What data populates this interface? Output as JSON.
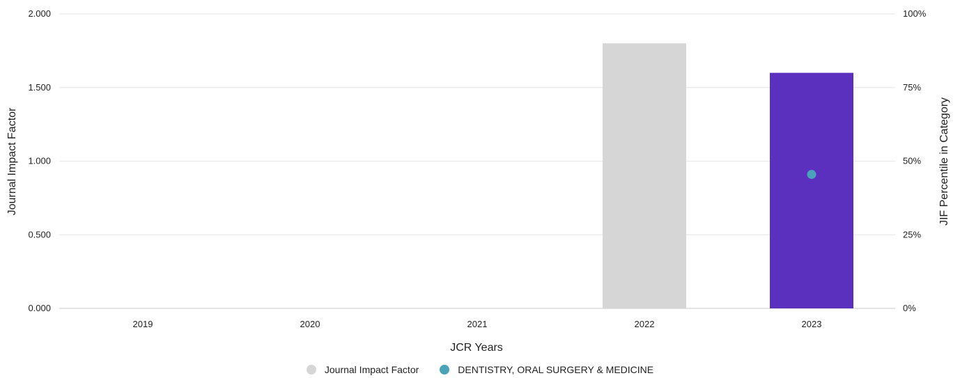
{
  "chart_data": {
    "type": "bar",
    "categories": [
      "2019",
      "2020",
      "2021",
      "2022",
      "2023"
    ],
    "series": [
      {
        "name": "Journal Impact Factor",
        "axis": "left",
        "values": [
          null,
          null,
          null,
          1.8,
          1.6
        ]
      },
      {
        "name": "DENTISTRY, ORAL SURGERY & MEDICINE",
        "axis": "right",
        "type": "scatter",
        "values": [
          null,
          null,
          null,
          null,
          45.5
        ]
      }
    ],
    "bar_colors": [
      "#d6d6d6",
      "#d6d6d6",
      "#d6d6d6",
      "#d6d6d6",
      "#5c30bf"
    ],
    "marker_color": "#4aa3b8",
    "xlabel": "JCR Years",
    "ylabel": "Journal Impact Factor",
    "ylabel_right": "JIF Percentile in Category",
    "ylim": [
      0,
      2
    ],
    "ylim_right": [
      0,
      100
    ],
    "yticks": [
      "0.000",
      "0.500",
      "1.000",
      "1.500",
      "2.000"
    ],
    "yticks_right": [
      "0%",
      "25%",
      "50%",
      "75%",
      "100%"
    ],
    "grid": true,
    "legend_position": "bottom"
  },
  "legend": {
    "items": [
      {
        "label": "Journal Impact Factor",
        "color": "#d6d6d6"
      },
      {
        "label": "DENTISTRY, ORAL SURGERY & MEDICINE",
        "color": "#4aa3b8"
      }
    ]
  }
}
